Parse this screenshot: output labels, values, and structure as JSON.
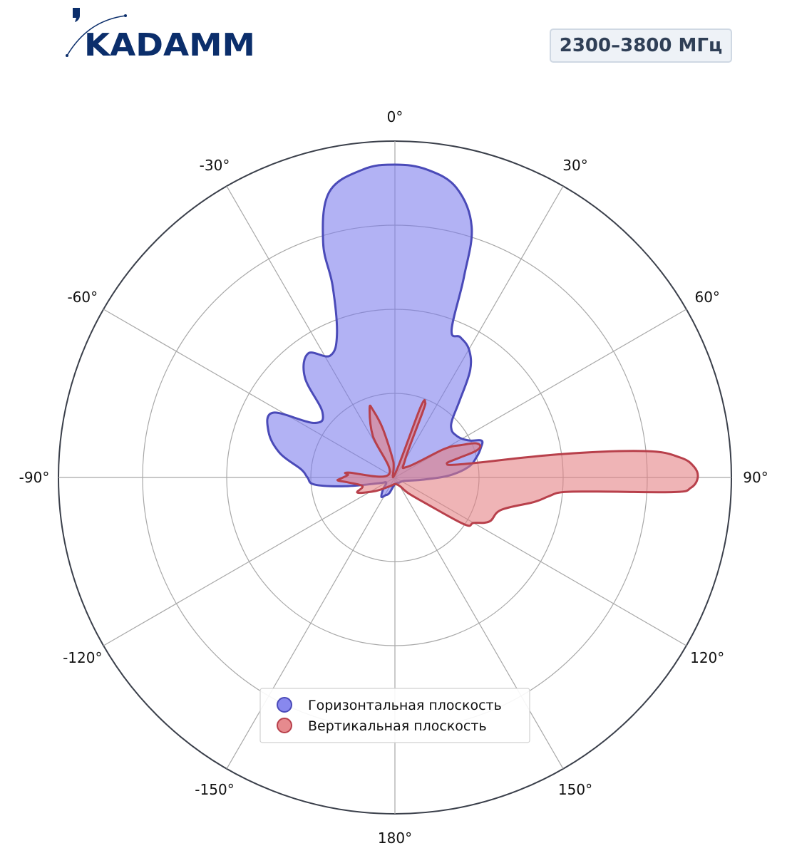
{
  "logo": {
    "text": "KADAMM",
    "color": "#0b2e6b"
  },
  "badge": {
    "text": "2300–3800 МГц"
  },
  "chart_data": {
    "type": "polar-area",
    "angle_ticks": [
      "0°",
      "30°",
      "60°",
      "90°",
      "120°",
      "150°",
      "180°",
      "-150°",
      "-120°",
      "-90°",
      "-60°",
      "-30°"
    ],
    "radial_range": [
      0,
      1
    ],
    "radial_gridlines": [
      0.25,
      0.5,
      0.75,
      1.0
    ],
    "grid": true,
    "legend_position": "bottom-center",
    "series": [
      {
        "name": "Горизонтальная плоскость",
        "fill": "#7b7bec",
        "stroke": "#4a4ab8",
        "points": [
          [
            0,
            0.93
          ],
          [
            6,
            0.92
          ],
          [
            12,
            0.88
          ],
          [
            17,
            0.78
          ],
          [
            19,
            0.63
          ],
          [
            21,
            0.47
          ],
          [
            25,
            0.46
          ],
          [
            30,
            0.44
          ],
          [
            35,
            0.39
          ],
          [
            40,
            0.3
          ],
          [
            45,
            0.24
          ],
          [
            50,
            0.22
          ],
          [
            55,
            0.22
          ],
          [
            60,
            0.23
          ],
          [
            64,
            0.25
          ],
          [
            67,
            0.28
          ],
          [
            71,
            0.27
          ],
          [
            76,
            0.25
          ],
          [
            82,
            0.22
          ],
          [
            88,
            0.16
          ],
          [
            95,
            0.08
          ],
          [
            110,
            0.03
          ],
          [
            140,
            0.02
          ],
          [
            180,
            0.02
          ],
          [
            -160,
            0.05
          ],
          [
            -152,
            0.06
          ],
          [
            -145,
            0.07
          ],
          [
            -135,
            0.05
          ],
          [
            -120,
            0.03
          ],
          [
            -110,
            0.05
          ],
          [
            -100,
            0.15
          ],
          [
            -95,
            0.24
          ],
          [
            -90,
            0.26
          ],
          [
            -85,
            0.28
          ],
          [
            -78,
            0.35
          ],
          [
            -70,
            0.4
          ],
          [
            -62,
            0.41
          ],
          [
            -56,
            0.29
          ],
          [
            -48,
            0.29
          ],
          [
            -42,
            0.4
          ],
          [
            -35,
            0.45
          ],
          [
            -28,
            0.41
          ],
          [
            -22,
            0.46
          ],
          [
            -18,
            0.6
          ],
          [
            -17,
            0.73
          ],
          [
            -13,
            0.87
          ],
          [
            -6,
            0.92
          ]
        ]
      },
      {
        "name": "Вертикальная плоскость",
        "fill": "#e37d82",
        "stroke": "#b8404b",
        "points": [
          [
            0,
            0.01
          ],
          [
            20,
            0.22
          ],
          [
            22,
            0.24
          ],
          [
            23,
            0.21
          ],
          [
            30,
            0.06
          ],
          [
            50,
            0.05
          ],
          [
            60,
            0.17
          ],
          [
            64,
            0.22
          ],
          [
            67,
            0.26
          ],
          [
            70,
            0.27
          ],
          [
            72,
            0.25
          ],
          [
            73,
            0.2
          ],
          [
            75,
            0.16
          ],
          [
            79,
            0.21
          ],
          [
            82,
            0.5
          ],
          [
            84,
            0.75
          ],
          [
            86,
            0.85
          ],
          [
            88,
            0.89
          ],
          [
            90,
            0.9
          ],
          [
            92,
            0.88
          ],
          [
            93,
            0.83
          ],
          [
            94,
            0.6
          ],
          [
            95,
            0.5
          ],
          [
            97,
            0.46
          ],
          [
            100,
            0.42
          ],
          [
            107,
            0.33
          ],
          [
            115,
            0.31
          ],
          [
            120,
            0.27
          ],
          [
            124,
            0.25
          ],
          [
            130,
            0.12
          ],
          [
            140,
            0.06
          ],
          [
            150,
            0.03
          ],
          [
            180,
            0.02
          ],
          [
            -150,
            0.03
          ],
          [
            -125,
            0.07
          ],
          [
            -112,
            0.12
          ],
          [
            -105,
            0.1
          ],
          [
            -96,
            0.14
          ],
          [
            -93,
            0.17
          ],
          [
            -91,
            0.16
          ],
          [
            -87,
            0.14
          ],
          [
            -84,
            0.14
          ],
          [
            -60,
            0.02
          ],
          [
            -28,
            0.14
          ],
          [
            -20,
            0.22
          ],
          [
            -18,
            0.21
          ],
          [
            -14,
            0.15
          ],
          [
            -6,
            0.05
          ]
        ]
      }
    ]
  }
}
